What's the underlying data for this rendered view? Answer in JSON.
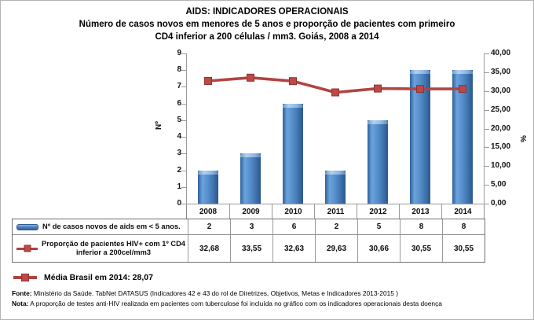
{
  "title": {
    "line1": "AIDS: INDICADORES OPERACIONAIS",
    "line2": "Número de casos novos em menores de 5 anos e proporção de pacientes com primeiro",
    "line3": "CD4 inferior a 200 células / mm3. Goiás, 2008 a 2014"
  },
  "chart_data": {
    "type": "combo (bar + line)",
    "categories": [
      "2008",
      "2009",
      "2010",
      "2011",
      "2012",
      "2013",
      "2014"
    ],
    "series": [
      {
        "name": "Nº de casos novos de aids em < 5 anos.",
        "type": "bar",
        "axis": "left",
        "values": [
          2,
          3,
          6,
          2,
          5,
          8,
          8
        ],
        "color": "#4f81bd"
      },
      {
        "name": "Proporção de pacientes HIV+ com 1º CD4 inferior a 200cel/mm3",
        "type": "line",
        "axis": "right",
        "values": [
          32.68,
          33.55,
          32.63,
          29.63,
          30.66,
          30.55,
          30.55
        ],
        "color": "#b04542"
      }
    ],
    "left_axis": {
      "label": "Nº",
      "min": 0,
      "max": 9,
      "step": 1,
      "ticks": [
        "9",
        "8",
        "7",
        "6",
        "5",
        "4",
        "3",
        "2",
        "1",
        "0"
      ]
    },
    "right_axis": {
      "label": "%",
      "min": 0,
      "max": 40,
      "step": 5,
      "ticks": [
        "40,00",
        "35,00",
        "30,00",
        "25,00",
        "20,00",
        "15,00",
        "10,00",
        "5,00",
        "0,00"
      ]
    },
    "gridlines": false,
    "legend_position": "data-table + bottom annotation",
    "annotations": [
      {
        "label": "Média Brasil em 2014: 28,07",
        "value": 28.07
      }
    ]
  },
  "table": {
    "rows": [
      {
        "key": "bar",
        "label": "Nº de casos novos de aids em < 5 anos.",
        "values": [
          "2",
          "3",
          "6",
          "2",
          "5",
          "8",
          "8"
        ]
      },
      {
        "key": "line",
        "label": "Proporção de pacientes HIV+ com 1º CD4 inferior a 200cel/mm3",
        "values": [
          "32,68",
          "33,55",
          "32,63",
          "29,63",
          "30,66",
          "30,55",
          "30,55"
        ]
      }
    ]
  },
  "legend": {
    "label": "Média Brasil em 2014: 28,07"
  },
  "footer": {
    "fonte_prefix": "Fonte:",
    "fonte_text": " Ministério da Saúde. TabNet DATASUS (Indicadores 42 e 43 do rol de Diretrizes, Objetivos, Metas e Indicadores 2013-2015 )",
    "nota_prefix": "Nota:",
    "nota_text": " A proporção de testes anti-HIV realizada em pacientes com tuberculose foi incluída no gráfico com os indicadores operacionais desta doença"
  },
  "colors": {
    "bar": "#4f81bd",
    "line": "#b04542",
    "axis": "#9a9a9a",
    "table_border": "#7f7f7f"
  }
}
